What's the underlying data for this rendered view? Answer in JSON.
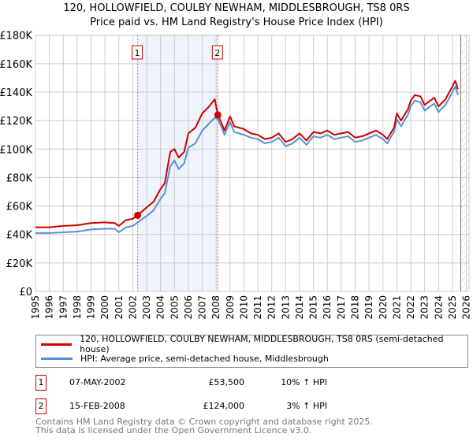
{
  "chart_data": {
    "type": "line",
    "title": "120, HOLLOWFIELD, COULBY NEWHAM, MIDDLESBROUGH, TS8 0RS",
    "subtitle": "Price paid vs. HM Land Registry's House Price Index (HPI)",
    "xlabel": "",
    "ylabel": "",
    "xlim": [
      1995,
      2026.2
    ],
    "ylim": [
      0,
      180000
    ],
    "y_ticks": [
      0,
      20000,
      40000,
      60000,
      80000,
      100000,
      120000,
      140000,
      160000,
      180000
    ],
    "y_tick_labels": [
      "£0",
      "£20K",
      "£40K",
      "£60K",
      "£80K",
      "£100K",
      "£120K",
      "£140K",
      "£160K",
      "£180K"
    ],
    "x_ticks": [
      1995,
      1996,
      1997,
      1998,
      1999,
      2000,
      2001,
      2002,
      2003,
      2004,
      2005,
      2006,
      2007,
      2008,
      2009,
      2010,
      2011,
      2012,
      2013,
      2014,
      2015,
      2016,
      2017,
      2018,
      2019,
      2020,
      2021,
      2022,
      2023,
      2024,
      2025,
      2026
    ],
    "grid": true,
    "series": [
      {
        "name": "120, HOLLOWFIELD, COULBY NEWHAM, MIDDLESBROUGH, TS8 0RS (semi-detached house)",
        "color": "#cc0000",
        "x": [
          1995,
          1996,
          1997,
          1998,
          1999,
          2000,
          2000.7,
          2001,
          2001.5,
          2002,
          2002.35,
          2003,
          2003.5,
          2004,
          2004.3,
          2004.7,
          2005,
          2005.3,
          2005.7,
          2006,
          2006.5,
          2007,
          2007.5,
          2007.9,
          2008.12,
          2008.4,
          2008.6,
          2009,
          2009.3,
          2010,
          2010.5,
          2011,
          2011.5,
          2012,
          2012.5,
          2013,
          2013.5,
          2014,
          2014.5,
          2015,
          2015.5,
          2016,
          2016.5,
          2017,
          2017.5,
          2018,
          2018.5,
          2019,
          2019.5,
          2020,
          2020.3,
          2020.8,
          2021,
          2021.3,
          2021.8,
          2022,
          2022.3,
          2022.7,
          2023,
          2023.4,
          2023.7,
          2024,
          2024.5,
          2025,
          2025.2,
          2025.4
        ],
        "y": [
          45000,
          45000,
          46000,
          46500,
          48000,
          48500,
          48000,
          46000,
          50000,
          51000,
          53500,
          59000,
          63000,
          72000,
          76000,
          98000,
          100000,
          94000,
          98000,
          111000,
          115000,
          125000,
          130000,
          135000,
          124000,
          118000,
          113000,
          123000,
          116000,
          114000,
          111000,
          110000,
          107000,
          108000,
          111000,
          105000,
          107000,
          111000,
          106000,
          112000,
          111000,
          113000,
          110000,
          111000,
          112000,
          108000,
          109000,
          111000,
          113000,
          110000,
          107000,
          115000,
          125000,
          120000,
          128000,
          134000,
          138000,
          137000,
          131000,
          134000,
          136000,
          130000,
          135000,
          144000,
          148000,
          142000
        ]
      },
      {
        "name": "HPI: Average price, semi-detached house, Middlesbrough",
        "color": "#5b8fd4",
        "x": [
          1995,
          1996,
          1997,
          1998,
          1999,
          2000,
          2000.7,
          2001,
          2001.5,
          2002,
          2002.35,
          2003,
          2003.5,
          2004,
          2004.3,
          2004.7,
          2005,
          2005.3,
          2005.7,
          2006,
          2006.5,
          2007,
          2007.5,
          2007.9,
          2008.12,
          2008.4,
          2008.6,
          2009,
          2009.3,
          2010,
          2010.5,
          2011,
          2011.5,
          2012,
          2012.5,
          2013,
          2013.5,
          2014,
          2014.5,
          2015,
          2015.5,
          2016,
          2016.5,
          2017,
          2017.5,
          2018,
          2018.5,
          2019,
          2019.5,
          2020,
          2020.3,
          2020.8,
          2021,
          2021.3,
          2021.8,
          2022,
          2022.3,
          2022.7,
          2023,
          2023.4,
          2023.7,
          2024,
          2024.5,
          2025,
          2025.2,
          2025.4
        ],
        "y": [
          41000,
          41000,
          41500,
          42000,
          43500,
          44000,
          44000,
          41500,
          45000,
          46000,
          48500,
          53000,
          57000,
          65000,
          69000,
          88000,
          92000,
          86000,
          90000,
          101000,
          104000,
          113000,
          118000,
          122000,
          121000,
          115000,
          110000,
          119000,
          112000,
          110000,
          108000,
          107000,
          104000,
          105000,
          108000,
          102000,
          104000,
          108000,
          103000,
          109000,
          108000,
          110000,
          107000,
          108000,
          109000,
          105000,
          106000,
          108000,
          110000,
          107000,
          104000,
          112000,
          121000,
          116000,
          124000,
          130000,
          134000,
          133000,
          127000,
          130000,
          132000,
          126000,
          131000,
          140000,
          144000,
          138000
        ]
      }
    ],
    "transactions": [
      {
        "id": "1",
        "date": "07-MAY-2002",
        "x": 2002.35,
        "price": "£53,500",
        "value": 53500,
        "hpi": "10% ↑ HPI"
      },
      {
        "id": "2",
        "date": "15-FEB-2008",
        "x": 2008.12,
        "price": "£124,000",
        "value": 124000,
        "hpi": "3% ↑ HPI"
      }
    ],
    "legend_placement": "bottom"
  },
  "footer": {
    "line1": "Contains HM Land Registry data © Crown copyright and database right 2025.",
    "line2": "This data is licensed under the Open Government Licence v3.0."
  }
}
